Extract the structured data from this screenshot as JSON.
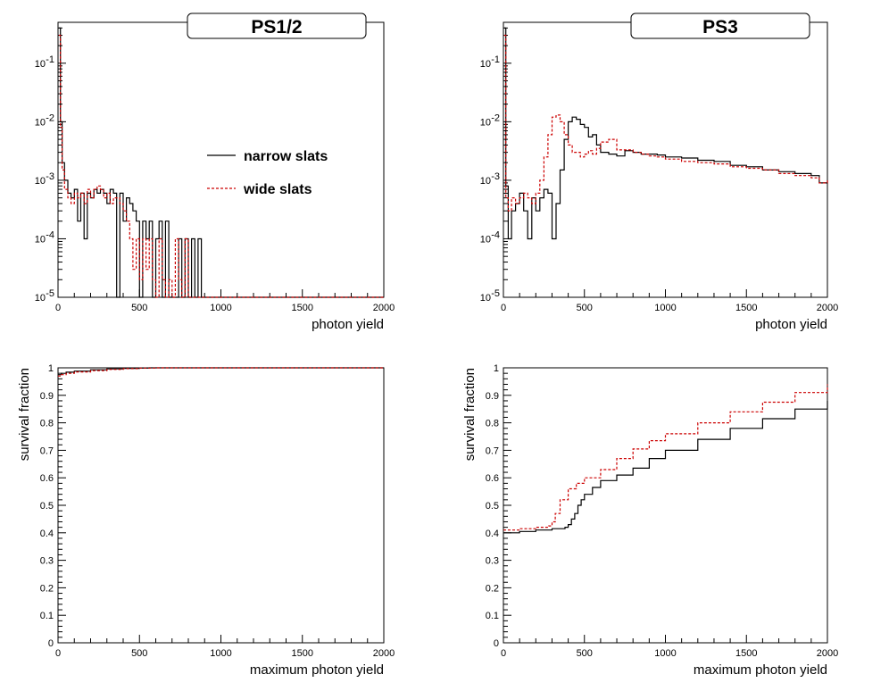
{
  "chart_data": [
    {
      "type": "line",
      "title": "PS1/2",
      "xlabel": "photon yield",
      "ylabel": "",
      "xlim": [
        0,
        2000
      ],
      "ylim": [
        1e-05,
        0.5
      ],
      "y_scale": "log",
      "x_ticks": [
        "0",
        "500",
        "1000",
        "1500",
        "2000"
      ],
      "y_ticks": [
        {
          "base": "10",
          "exp": "-5"
        },
        {
          "base": "10",
          "exp": "-4"
        },
        {
          "base": "10",
          "exp": "-3"
        },
        {
          "base": "10",
          "exp": "-2"
        },
        {
          "base": "10",
          "exp": "-1"
        }
      ],
      "legend": {
        "position": "right",
        "entries": [
          "narrow slats",
          "wide slats"
        ]
      },
      "series": [
        {
          "name": "narrow slats",
          "color": "#000000",
          "style": "solid",
          "x": [
            5,
            15,
            25,
            40,
            60,
            80,
            100,
            120,
            140,
            160,
            180,
            200,
            220,
            240,
            260,
            280,
            300,
            320,
            340,
            360,
            380,
            400,
            420,
            440,
            460,
            480,
            500,
            520,
            540,
            560,
            580,
            600,
            620,
            640,
            660,
            680,
            700,
            720,
            740,
            760,
            780,
            800,
            820,
            840,
            860,
            880,
            900,
            1000,
            1500,
            2000
          ],
          "y": [
            0.4,
            0.01,
            0.002,
            0.001,
            0.0006,
            0.0005,
            0.0007,
            0.0002,
            0.0006,
            0.0001,
            0.0006,
            0.0005,
            0.0007,
            0.0006,
            0.0007,
            0.0006,
            0.0004,
            0.0007,
            0.0006,
            1e-05,
            0.0006,
            0.0002,
            0.0005,
            0.0004,
            0.0003,
            0.0002,
            1e-05,
            0.0002,
            0.0001,
            0.0002,
            1e-05,
            0.0001,
            0.0002,
            1e-05,
            0.0002,
            1e-05,
            1e-05,
            1e-05,
            0.0001,
            1e-05,
            0.0001,
            1e-05,
            0.0001,
            1e-05,
            0.0001,
            1e-05,
            1e-05,
            1e-05,
            1e-05,
            1e-05
          ]
        },
        {
          "name": "wide slats",
          "color": "#cc0000",
          "style": "dashed",
          "x": [
            5,
            15,
            25,
            40,
            60,
            80,
            100,
            120,
            140,
            160,
            180,
            200,
            220,
            240,
            260,
            280,
            300,
            320,
            340,
            360,
            380,
            400,
            420,
            440,
            460,
            480,
            500,
            520,
            540,
            560,
            580,
            600,
            620,
            640,
            660,
            680,
            700,
            720,
            740,
            760,
            780,
            800,
            820,
            840,
            860,
            880,
            900,
            1000,
            1500,
            2000
          ],
          "y": [
            0.3,
            0.008,
            0.0015,
            0.0007,
            0.0005,
            0.0004,
            0.0006,
            0.0005,
            0.0006,
            0.0004,
            0.0007,
            0.0005,
            0.0007,
            0.0008,
            0.0007,
            0.0005,
            0.0006,
            0.0004,
            0.0005,
            0.0005,
            0.0004,
            0.0003,
            0.0002,
            0.0001,
            3e-05,
            0.0001,
            2e-05,
            0.0001,
            3e-05,
            0.0001,
            2e-05,
            1e-05,
            0.0001,
            2e-05,
            1e-05,
            2e-05,
            1e-05,
            0.0001,
            2e-05,
            1e-05,
            0.0001,
            1e-05,
            1e-05,
            1e-05,
            1e-05,
            1e-05,
            1e-05,
            1e-05,
            1e-05,
            1e-05
          ]
        }
      ]
    },
    {
      "type": "line",
      "title": "PS3",
      "xlabel": "photon yield",
      "ylabel": "",
      "xlim": [
        0,
        2000
      ],
      "ylim": [
        1e-05,
        0.5
      ],
      "y_scale": "log",
      "x_ticks": [
        "0",
        "500",
        "1000",
        "1500",
        "2000"
      ],
      "y_ticks": [
        {
          "base": "10",
          "exp": "-5"
        },
        {
          "base": "10",
          "exp": "-4"
        },
        {
          "base": "10",
          "exp": "-3"
        },
        {
          "base": "10",
          "exp": "-2"
        },
        {
          "base": "10",
          "exp": "-1"
        }
      ],
      "series": [
        {
          "name": "narrow slats",
          "color": "#000000",
          "style": "solid",
          "x": [
            5,
            15,
            30,
            50,
            75,
            100,
            125,
            150,
            175,
            200,
            225,
            250,
            275,
            300,
            325,
            350,
            375,
            400,
            425,
            450,
            475,
            500,
            525,
            550,
            575,
            600,
            650,
            700,
            750,
            800,
            850,
            900,
            950,
            1000,
            1100,
            1200,
            1300,
            1400,
            1500,
            1600,
            1700,
            1800,
            1900,
            1950,
            2000
          ],
          "y": [
            0.4,
            0.0008,
            0.0001,
            0.0003,
            0.0004,
            0.0006,
            0.0003,
            0.0001,
            0.0005,
            0.0003,
            0.0005,
            0.0007,
            0.0006,
            0.0001,
            0.0004,
            0.0015,
            0.005,
            0.01,
            0.012,
            0.011,
            0.009,
            0.008,
            0.0055,
            0.006,
            0.004,
            0.003,
            0.0028,
            0.0026,
            0.0032,
            0.003,
            0.0028,
            0.0028,
            0.0027,
            0.0025,
            0.0024,
            0.0022,
            0.0021,
            0.0018,
            0.0017,
            0.0015,
            0.0014,
            0.0013,
            0.0012,
            0.0009,
            0.001
          ]
        },
        {
          "name": "wide slats",
          "color": "#cc0000",
          "style": "dashed",
          "x": [
            5,
            15,
            30,
            50,
            75,
            100,
            125,
            150,
            175,
            200,
            225,
            250,
            275,
            300,
            325,
            350,
            375,
            400,
            425,
            450,
            475,
            500,
            525,
            550,
            575,
            600,
            650,
            700,
            750,
            800,
            850,
            900,
            950,
            1000,
            1100,
            1200,
            1300,
            1400,
            1500,
            1600,
            1700,
            1800,
            1900,
            1950,
            2000
          ],
          "y": [
            0.3,
            0.0005,
            0.0003,
            0.0005,
            0.0004,
            0.0005,
            0.0006,
            0.0005,
            0.0004,
            0.0006,
            0.001,
            0.0025,
            0.006,
            0.012,
            0.013,
            0.01,
            0.006,
            0.004,
            0.003,
            0.003,
            0.0025,
            0.0028,
            0.0032,
            0.0028,
            0.0035,
            0.0045,
            0.005,
            0.0033,
            0.0033,
            0.003,
            0.0028,
            0.0026,
            0.0025,
            0.0023,
            0.0021,
            0.002,
            0.0019,
            0.0017,
            0.0016,
            0.0015,
            0.0013,
            0.0012,
            0.0011,
            0.0009,
            0.001
          ]
        }
      ]
    },
    {
      "type": "line",
      "title": "",
      "xlabel": "maximum photon yield",
      "ylabel": "survival fraction",
      "xlim": [
        0,
        2000
      ],
      "ylim": [
        0,
        1
      ],
      "x_ticks": [
        "0",
        "500",
        "1000",
        "1500",
        "2000"
      ],
      "y_ticks": [
        "0",
        "0.1",
        "0.2",
        "0.3",
        "0.4",
        "0.5",
        "0.6",
        "0.7",
        "0.8",
        "0.9",
        "1"
      ],
      "series": [
        {
          "name": "narrow slats",
          "color": "#000000",
          "style": "solid",
          "x": [
            0,
            20,
            50,
            100,
            200,
            300,
            400,
            500,
            560,
            2000
          ],
          "y": [
            0.975,
            0.98,
            0.984,
            0.988,
            0.993,
            0.996,
            0.998,
            0.999,
            1.0,
            1.0
          ]
        },
        {
          "name": "wide slats",
          "color": "#cc0000",
          "style": "dashed",
          "x": [
            0,
            20,
            50,
            100,
            200,
            300,
            400,
            500,
            600,
            2000
          ],
          "y": [
            0.97,
            0.975,
            0.98,
            0.985,
            0.99,
            0.994,
            0.997,
            0.999,
            1.0,
            1.0
          ]
        }
      ]
    },
    {
      "type": "line",
      "title": "",
      "xlabel": "maximum photon yield",
      "ylabel": "survival fraction",
      "xlim": [
        0,
        2000
      ],
      "ylim": [
        0,
        1
      ],
      "x_ticks": [
        "0",
        "500",
        "1000",
        "1500",
        "2000"
      ],
      "y_ticks": [
        "0",
        "0.1",
        "0.2",
        "0.3",
        "0.4",
        "0.5",
        "0.6",
        "0.7",
        "0.8",
        "0.9",
        "1"
      ],
      "series": [
        {
          "name": "narrow slats",
          "color": "#000000",
          "style": "solid",
          "x": [
            0,
            100,
            200,
            300,
            350,
            380,
            400,
            420,
            440,
            460,
            480,
            500,
            550,
            600,
            700,
            800,
            900,
            1000,
            1200,
            1400,
            1600,
            1800,
            2000
          ],
          "y": [
            0.4,
            0.405,
            0.41,
            0.415,
            0.415,
            0.42,
            0.43,
            0.45,
            0.47,
            0.5,
            0.52,
            0.54,
            0.565,
            0.59,
            0.61,
            0.635,
            0.67,
            0.7,
            0.74,
            0.78,
            0.815,
            0.85,
            0.88
          ]
        },
        {
          "name": "wide slats",
          "color": "#cc0000",
          "style": "dashed",
          "x": [
            0,
            100,
            200,
            280,
            300,
            320,
            350,
            400,
            450,
            500,
            600,
            700,
            800,
            900,
            1000,
            1200,
            1400,
            1600,
            1800,
            2000
          ],
          "y": [
            0.41,
            0.415,
            0.42,
            0.425,
            0.44,
            0.47,
            0.52,
            0.56,
            0.58,
            0.6,
            0.63,
            0.67,
            0.705,
            0.735,
            0.76,
            0.8,
            0.84,
            0.875,
            0.91,
            0.94
          ]
        }
      ]
    }
  ]
}
